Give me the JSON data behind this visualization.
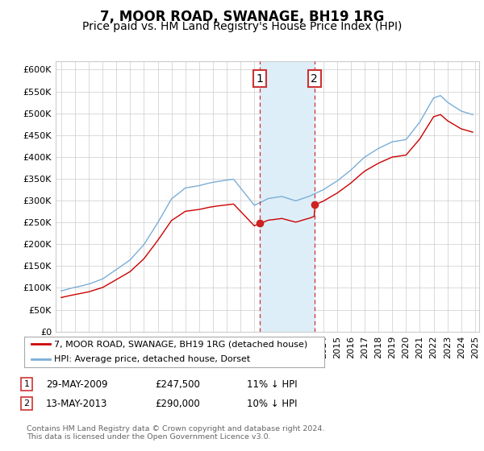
{
  "title": "7, MOOR ROAD, SWANAGE, BH19 1RG",
  "subtitle": "Price paid vs. HM Land Registry's House Price Index (HPI)",
  "ylim": [
    0,
    620000
  ],
  "yticks": [
    0,
    50000,
    100000,
    150000,
    200000,
    250000,
    300000,
    350000,
    400000,
    450000,
    500000,
    550000,
    600000
  ],
  "red_line_color": "#cc0000",
  "blue_line_color": "#7aaed6",
  "shaded_region_color": "#ddeef8",
  "marker1_x": 2009.38,
  "marker2_x": 2013.36,
  "marker1_price": 247500,
  "marker2_price": 290000,
  "legend_label_red": "7, MOOR ROAD, SWANAGE, BH19 1RG (detached house)",
  "legend_label_blue": "HPI: Average price, detached house, Dorset",
  "background_color": "#ffffff",
  "grid_color": "#cccccc",
  "title_fontsize": 12,
  "subtitle_fontsize": 10
}
